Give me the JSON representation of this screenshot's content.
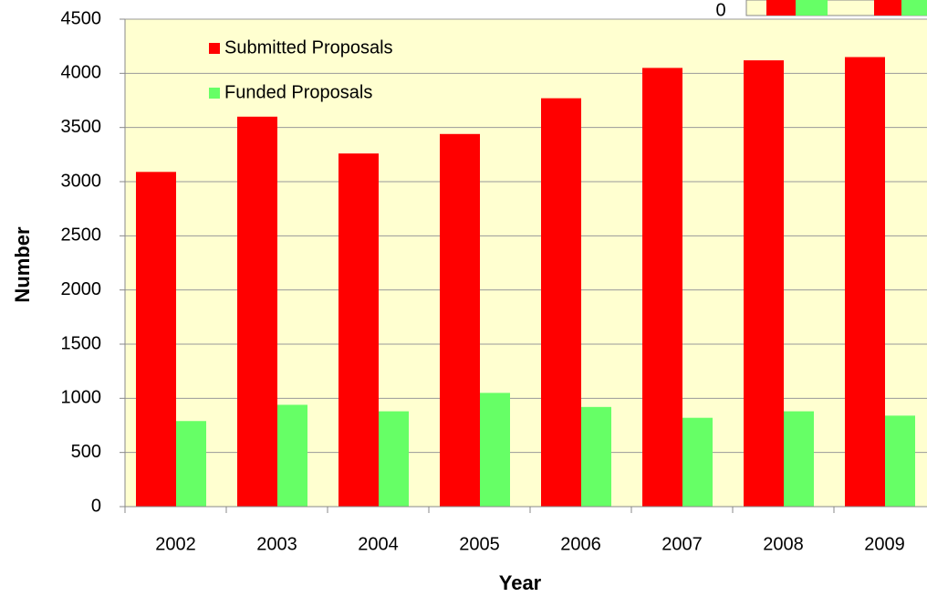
{
  "chart_data": {
    "type": "bar",
    "xlabel": "Year",
    "ylabel": "Number",
    "categories": [
      "2002",
      "2003",
      "2004",
      "2005",
      "2006",
      "2007",
      "2008",
      "2009"
    ],
    "series": [
      {
        "name": "Submitted Proposals",
        "color": "#ff0000",
        "values": [
          3090,
          3600,
          3260,
          3440,
          3770,
          4050,
          4120,
          4150
        ]
      },
      {
        "name": "Funded Proposals",
        "color": "#66ff66",
        "values": [
          790,
          940,
          880,
          1050,
          920,
          820,
          880,
          840
        ]
      }
    ],
    "ylim": [
      0,
      4500
    ],
    "yticks": [
      0,
      500,
      1000,
      1500,
      2000,
      2500,
      3000,
      3500,
      4000,
      4500
    ],
    "grid": true,
    "legend": "top-left"
  },
  "overlay": {
    "ytick": "0"
  }
}
